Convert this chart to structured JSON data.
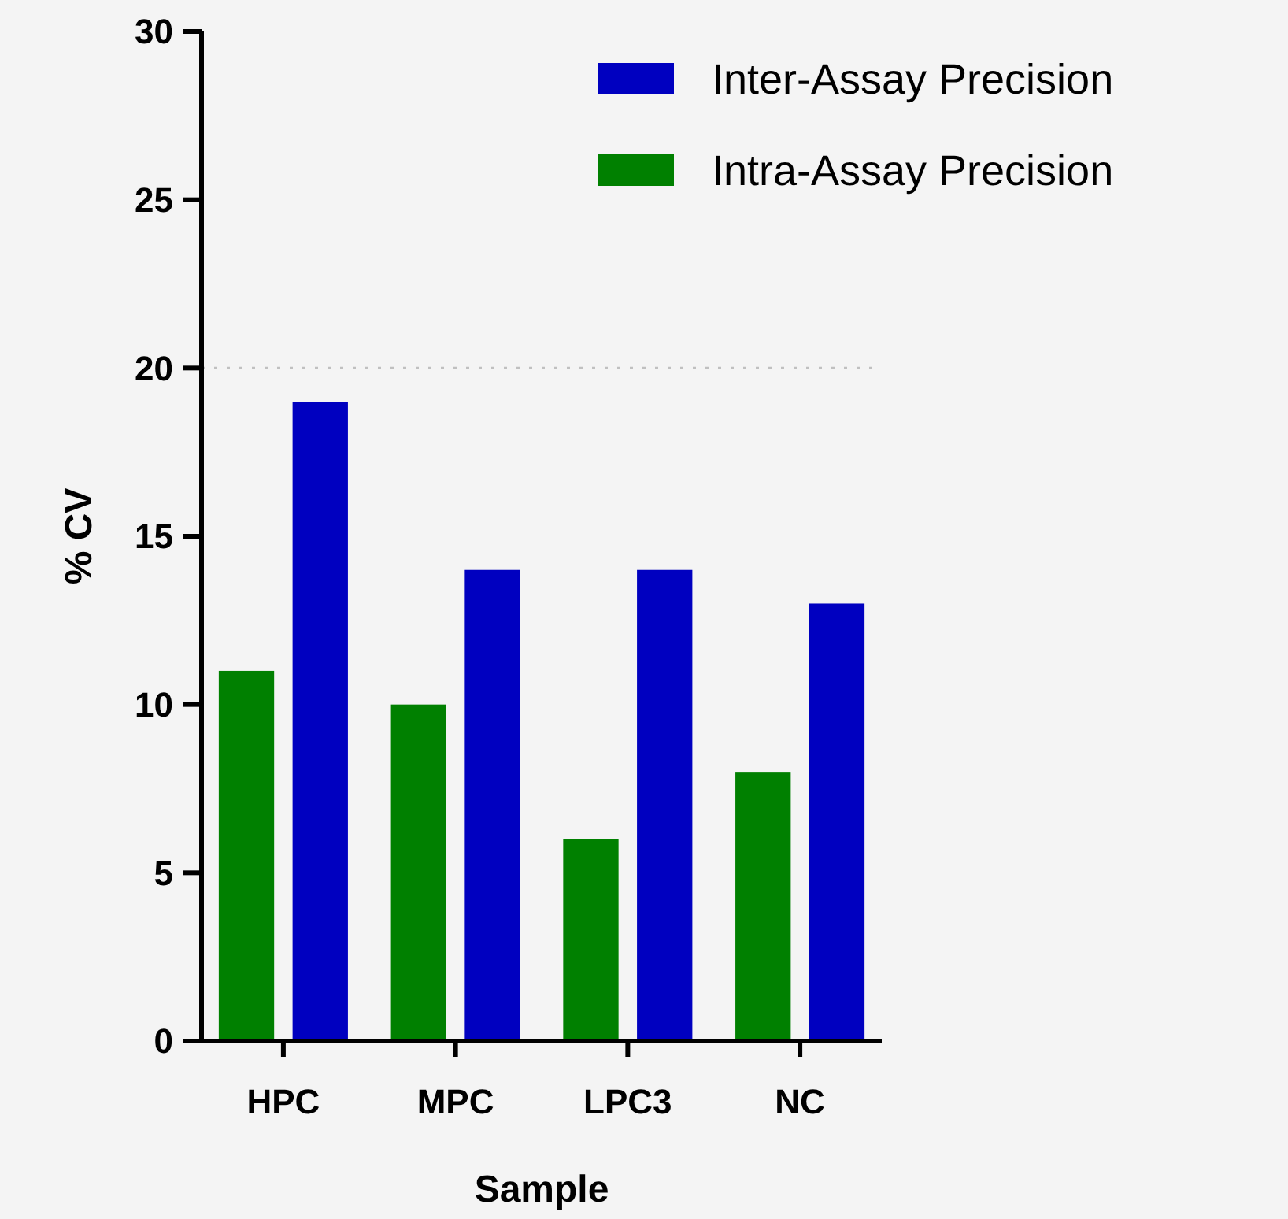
{
  "chart_data": {
    "type": "bar",
    "xlabel": "Sample",
    "ylabel": "% CV",
    "categories": [
      "HPC",
      "MPC",
      "LPC3",
      "NC"
    ],
    "series": [
      {
        "name": "Intra-Assay Precision",
        "color": "#008000",
        "values": [
          11,
          10,
          6,
          8
        ]
      },
      {
        "name": "Inter-Assay Precision",
        "color": "#0000c0",
        "values": [
          19,
          14,
          14,
          13
        ]
      }
    ],
    "ylim": [
      0,
      30
    ],
    "yticks": [
      0,
      5,
      10,
      15,
      20,
      25,
      30
    ],
    "grid": false,
    "legend": "top right",
    "ref_lines": [
      {
        "axis": "y",
        "value": 20,
        "color": "#c0c0c0",
        "line_style": "dotted"
      }
    ]
  }
}
